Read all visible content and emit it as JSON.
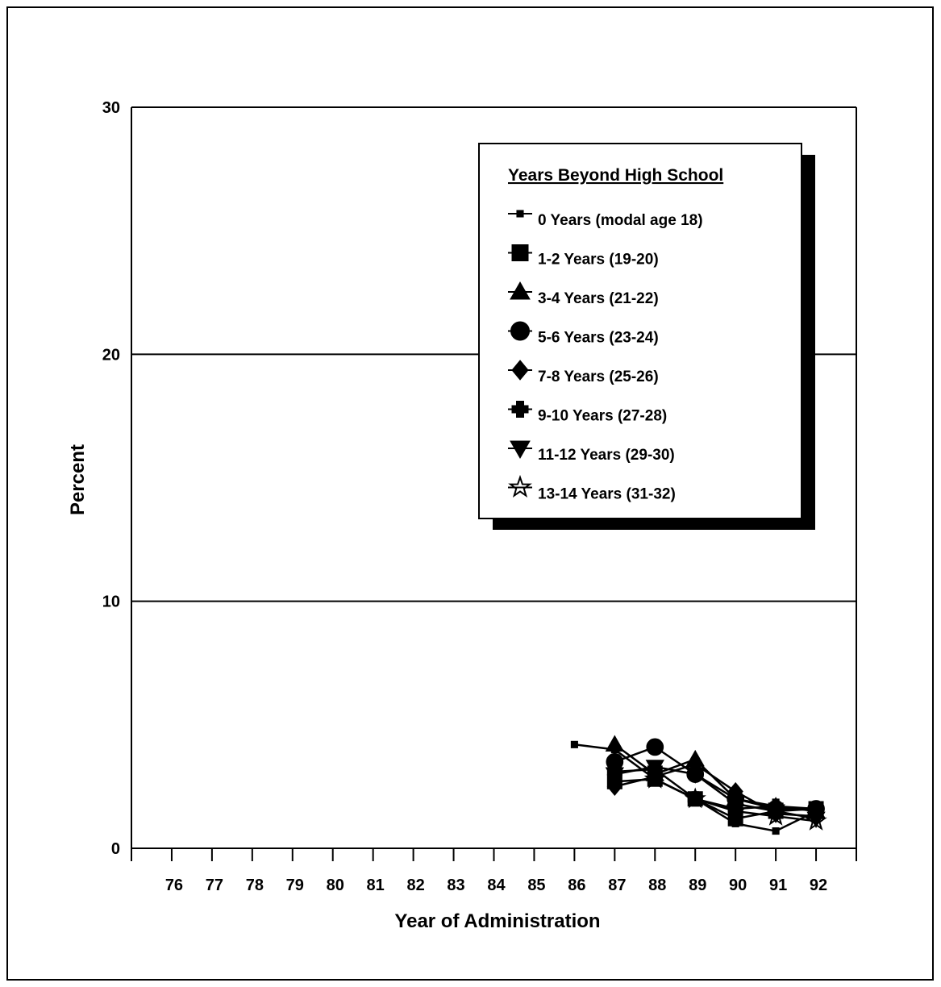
{
  "chart_data": {
    "type": "line",
    "title": "",
    "xlabel": "Year of Administration",
    "ylabel": "Percent",
    "x": [
      76,
      77,
      78,
      79,
      80,
      81,
      82,
      83,
      84,
      85,
      86,
      87,
      88,
      89,
      90,
      91,
      92
    ],
    "xlim": [
      75,
      93
    ],
    "ylim": [
      0,
      30
    ],
    "yticks": [
      0,
      10,
      20,
      30
    ],
    "grid": "horizontal",
    "legend_position": "top-right",
    "legend_title": "Years Beyond High School",
    "series": [
      {
        "name": "0 Years (modal age 18)",
        "marker": "small-square",
        "x": [
          86,
          87,
          88,
          89,
          90,
          91,
          92
        ],
        "values": [
          4.2,
          4.0,
          2.8,
          2.0,
          1.0,
          0.7,
          1.5
        ]
      },
      {
        "name": "1-2 Years (19-20)",
        "marker": "square",
        "x": [
          87,
          88,
          89,
          90,
          91,
          92
        ],
        "values": [
          2.7,
          2.8,
          2.0,
          1.2,
          1.5,
          1.6
        ]
      },
      {
        "name": "3-4 Years (21-22)",
        "marker": "triangle",
        "x": [
          87,
          88,
          89,
          90,
          91,
          92
        ],
        "values": [
          4.2,
          3.0,
          3.6,
          2.0,
          1.7,
          1.5
        ]
      },
      {
        "name": "5-6 Years (23-24)",
        "marker": "circle",
        "x": [
          87,
          88,
          89,
          90,
          91,
          92
        ],
        "values": [
          3.5,
          4.1,
          3.0,
          2.0,
          1.6,
          1.6
        ]
      },
      {
        "name": "7-8 Years (25-26)",
        "marker": "diamond",
        "x": [
          87,
          88,
          89,
          90,
          91,
          92
        ],
        "values": [
          2.5,
          2.9,
          3.4,
          2.3,
          1.4,
          1.3
        ]
      },
      {
        "name": "9-10 Years (27-28)",
        "marker": "plus",
        "x": [
          87,
          88,
          89,
          90,
          91,
          92
        ],
        "values": [
          3.1,
          3.2,
          2.0,
          1.6,
          1.7,
          1.6
        ]
      },
      {
        "name": "11-12 Years (29-30)",
        "marker": "triangle-down",
        "x": [
          87,
          88,
          89,
          90,
          91,
          92
        ],
        "values": [
          3.0,
          3.3,
          3.0,
          1.8,
          1.5,
          1.2
        ]
      },
      {
        "name": "13-14 Years (31-32)",
        "marker": "star",
        "x": [
          88,
          89,
          90,
          91,
          92
        ],
        "values": [
          2.8,
          2.0,
          1.5,
          1.3,
          1.1
        ]
      }
    ]
  }
}
